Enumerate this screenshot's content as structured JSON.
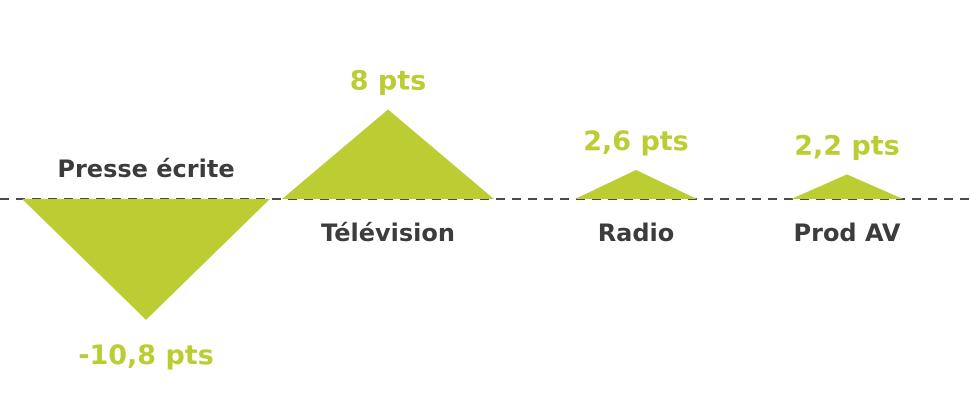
{
  "chart_data": {
    "type": "bar",
    "shape": "triangle",
    "baseline": "dashed-zero-line",
    "grid": false,
    "legend": "none",
    "categories": [
      "Presse écrite",
      "Télévision",
      "Radio",
      "Prod AV"
    ],
    "values": [
      -10.8,
      8,
      2.6,
      2.2
    ],
    "value_labels": [
      "-10,8 pts",
      "8 pts",
      "2,6 pts",
      "2,2 pts"
    ],
    "unit": "pts",
    "colors": {
      "fill": "#bccd33",
      "category_text": "#3c3c3c",
      "baseline": "#4a4a4a"
    }
  }
}
